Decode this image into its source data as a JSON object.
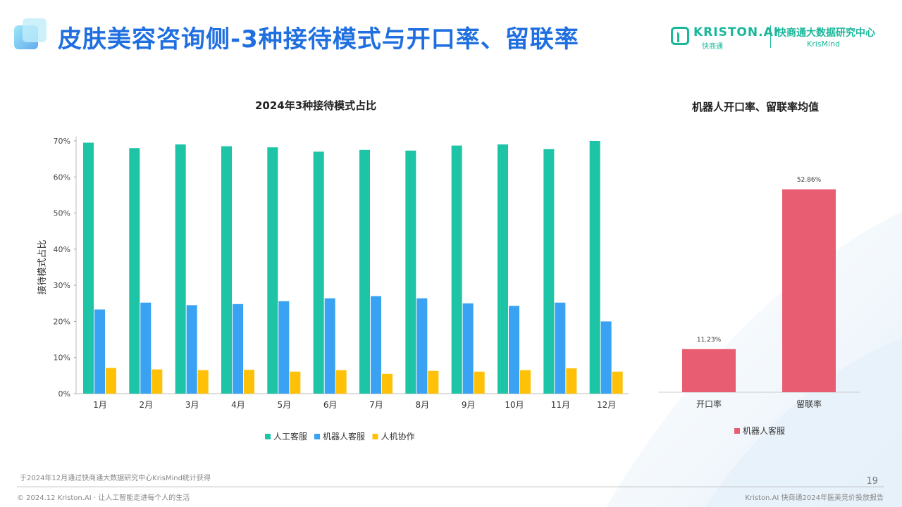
{
  "header": {
    "title": "皮肤美容咨询侧-3种接待模式与开口率、留联率",
    "brand_name": "KRISTON.AI",
    "brand_sub": "快商通",
    "brand_center": "快商通大数据研究中心",
    "brand_krismind": "KrisMind"
  },
  "chart_data": [
    {
      "type": "bar",
      "title": "2024年3种接待模式占比",
      "ylabel": "接待模式占比",
      "xlabel": "",
      "ylim": [
        0,
        70
      ],
      "yticks": [
        "0%",
        "10%",
        "20%",
        "30%",
        "40%",
        "50%",
        "60%",
        "70%"
      ],
      "categories": [
        "1月",
        "2月",
        "3月",
        "4月",
        "5月",
        "6月",
        "7月",
        "8月",
        "9月",
        "10月",
        "11月",
        "12月"
      ],
      "series": [
        {
          "name": "人工客服",
          "color": "#1dc4a6",
          "values": [
            69.5,
            68.0,
            69.0,
            68.5,
            68.2,
            67.0,
            67.5,
            67.3,
            68.7,
            69.0,
            67.7,
            70.0
          ]
        },
        {
          "name": "机器人客服",
          "color": "#3aa2f2",
          "values": [
            23.3,
            25.2,
            24.5,
            24.8,
            25.6,
            26.4,
            27.0,
            26.4,
            25.0,
            24.3,
            25.2,
            20.0
          ]
        },
        {
          "name": "人机协作",
          "color": "#ffc107",
          "values": [
            7.1,
            6.7,
            6.5,
            6.6,
            6.1,
            6.5,
            5.5,
            6.3,
            6.1,
            6.5,
            7.0,
            6.1
          ]
        }
      ],
      "grid": false,
      "legend": "bottom-center"
    },
    {
      "type": "bar",
      "title": "机器人开口率、留联率均值",
      "categories": [
        "开口率",
        "留联率"
      ],
      "series": [
        {
          "name": "机器人客服",
          "color": "#e95d72",
          "values": [
            11.23,
            52.86
          ],
          "labels": [
            "11.23%",
            "52.86%"
          ]
        }
      ],
      "legend": "bottom-center"
    }
  ],
  "footer": {
    "note": "于2024年12月通过快商通大数据研究中心KrisMind统计获得",
    "left": "© 2024.12 Kriston.AI · 让人工智能走进每个人的生活",
    "right": "Kriston.AI 快商通2024年医美竞价投放报告",
    "page": "19"
  }
}
